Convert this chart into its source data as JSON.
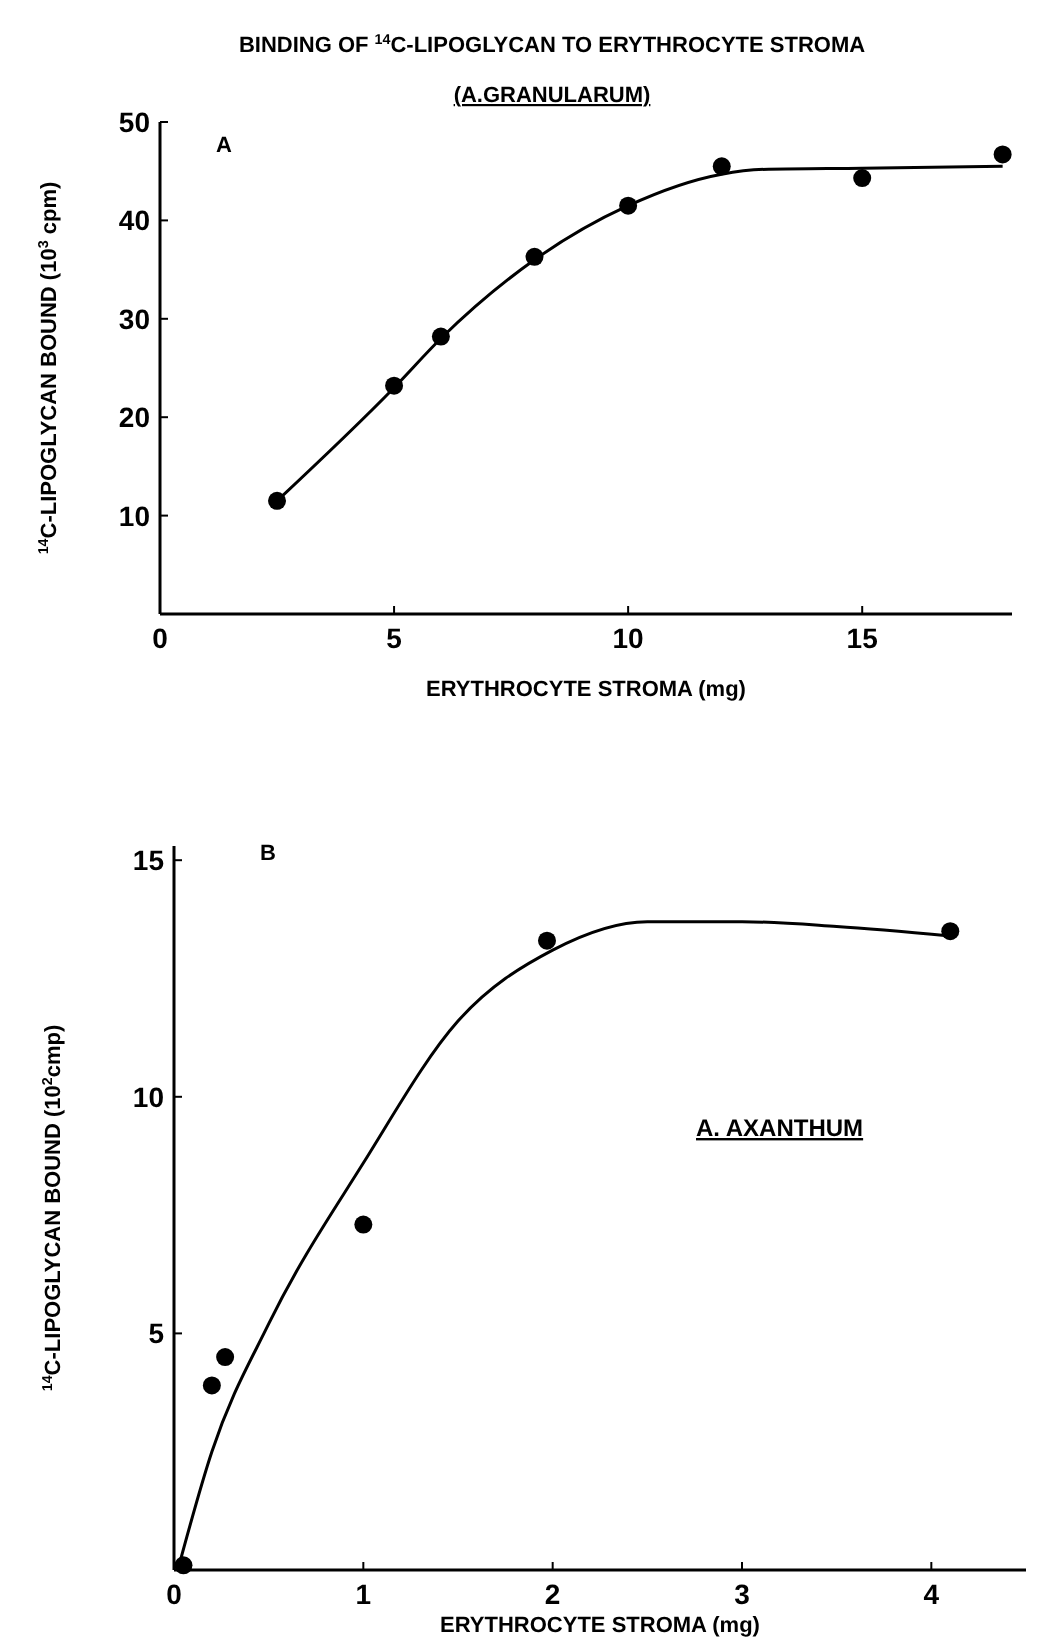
{
  "chart_data": [
    {
      "type": "scatter",
      "title": "BINDING OF $^{14}$C-LIPOGLYCAN TO ERYTHROCYTE STROMA",
      "subtitle": "(A.GRANULARUM)",
      "xlabel": "ERYTHROCYTE STROMA (mg)",
      "ylabel": "$^{14}$C-LIPOGLYCAN BOUND (10$^{3}$ cpm)",
      "annotations": [
        "A"
      ],
      "xlim": [
        0,
        18.2
      ],
      "ylim": [
        0,
        50
      ],
      "xticks": [
        0,
        5,
        10,
        15
      ],
      "yticks": [
        10,
        20,
        30,
        40,
        50
      ],
      "grid": false,
      "series": [
        {
          "marker": "circle",
          "color": "#000000",
          "x": [
            2.5,
            5,
            6,
            8,
            10,
            12,
            15,
            18
          ],
          "values": [
            11.5,
            23.2,
            28.2,
            36.3,
            41.5,
            45.5,
            44.3,
            46.7
          ]
        },
        {
          "type": "line",
          "line_style": "solid",
          "color": "#000000",
          "x": [
            2.5,
            5,
            6,
            8,
            10,
            12,
            13,
            15,
            18
          ],
          "values": [
            11.5,
            23,
            28,
            36,
            41.5,
            44.7,
            45.2,
            45.3,
            45.5
          ]
        }
      ]
    },
    {
      "type": "scatter",
      "xlabel": "ERYTHROCYTE STROMA (mg)",
      "ylabel": "$^{14}$C-LIPOGLYCAN BOUND (10$^{2}$cmp)",
      "annotations": [
        "B",
        "A. AXANTHUM"
      ],
      "xlim": [
        0,
        4.5
      ],
      "ylim": [
        0,
        15.3
      ],
      "xticks": [
        0,
        1,
        2,
        3,
        4
      ],
      "yticks": [
        5,
        10,
        15
      ],
      "grid": false,
      "series": [
        {
          "marker": "circle",
          "color": "#000000",
          "x": [
            0.05,
            0.2,
            0.27,
            1,
            1.97,
            4.1
          ],
          "values": [
            0.1,
            3.9,
            4.5,
            7.3,
            13.3,
            13.5
          ]
        },
        {
          "type": "line",
          "line_style": "solid",
          "color": "#000000",
          "x": [
            0.02,
            0.2,
            0.5,
            1,
            1.5,
            2,
            2.5,
            3,
            3.5,
            4.1
          ],
          "values": [
            0,
            2.5,
            5.2,
            8.6,
            11.6,
            13.1,
            13.7,
            13.7,
            13.6,
            13.4
          ]
        }
      ]
    }
  ]
}
